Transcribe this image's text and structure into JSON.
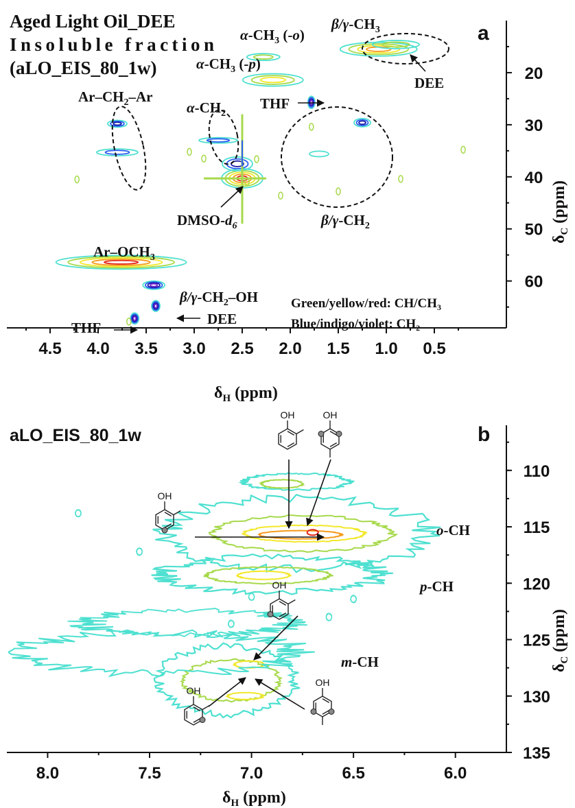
{
  "chart_data": [
    {
      "panel": "a",
      "type": "heatmap",
      "title_lines": [
        "Aged Light Oil_DEE",
        "Insoluble fraction",
        "(aLO_EIS_80_1w)"
      ],
      "xlabel": "δH (ppm)",
      "ylabel": "δC (ppm)",
      "xlim": [
        4.95,
        -0.25
      ],
      "ylim": [
        10,
        69
      ],
      "x_ticks": [
        4.5,
        4.0,
        3.5,
        3.0,
        2.5,
        2.0,
        1.5,
        1.0,
        0.5
      ],
      "x_tick_labels": [
        "4.5",
        "4.0",
        "3.5",
        "3.0",
        "2.5",
        "2.0",
        "1.5",
        "1.0",
        "0.5"
      ],
      "y_ticks": [
        20,
        30,
        40,
        50,
        60
      ],
      "y_tick_labels": [
        "20",
        "30",
        "40",
        "50",
        "60"
      ],
      "legend": [
        "Green/yellow/red:  CH/CH3",
        "Blue/indigo/violet: CH2"
      ],
      "cross_peaks": [
        {
          "x": 3.76,
          "y": 56.4,
          "levels": 5,
          "kind": "CH",
          "label": "Ar–OCH3"
        },
        {
          "x": 3.42,
          "y": 60.8,
          "levels": 4,
          "kind": "CH2"
        },
        {
          "x": 3.4,
          "y": 64.8,
          "levels": 4,
          "kind": "CH2"
        },
        {
          "x": 3.62,
          "y": 67.2,
          "levels": 4,
          "kind": "CH2"
        },
        {
          "x": 2.5,
          "y": 40.3,
          "levels": 5,
          "kind": "CH"
        },
        {
          "x": 2.55,
          "y": 37.5,
          "levels": 3,
          "kind": "CH2"
        },
        {
          "x": 2.18,
          "y": 21.4,
          "levels": 3,
          "kind": "CH"
        },
        {
          "x": 2.28,
          "y": 17.0,
          "levels": 2,
          "kind": "CH"
        },
        {
          "x": 1.78,
          "y": 25.7,
          "levels": 4,
          "kind": "CH2"
        },
        {
          "x": 1.25,
          "y": 29.6,
          "levels": 3,
          "kind": "CH2"
        },
        {
          "x": 1.08,
          "y": 15.5,
          "levels": 4,
          "kind": "CH"
        },
        {
          "x": 0.9,
          "y": 14.6,
          "levels": 2,
          "kind": "CH"
        },
        {
          "x": 3.8,
          "y": 29.8,
          "levels": 3,
          "kind": "CH2"
        },
        {
          "x": 3.8,
          "y": 35.3,
          "levels": 2,
          "kind": "CH2"
        },
        {
          "x": 2.75,
          "y": 33.0,
          "levels": 2,
          "kind": "CH2"
        },
        {
          "x": 1.7,
          "y": 35.6,
          "levels": 1,
          "kind": "CH2"
        }
      ],
      "annotations": [
        "α-CH3 (-o)",
        "α-CH3 (-p)",
        "β/γ-CH3",
        "DEE",
        "Ar–CH2–Ar",
        "α-CH2",
        "THF",
        "DMSO-d6",
        "β/γ-CH2",
        "β/γ-CH2–OH",
        "THF",
        "DEE"
      ]
    },
    {
      "panel": "b",
      "type": "heatmap",
      "title": "aLO_EIS_80_1w",
      "xlabel": "δH (ppm)",
      "ylabel": "δC (ppm)",
      "xlim": [
        8.2,
        5.75
      ],
      "ylim": [
        106,
        135
      ],
      "x_ticks": [
        8.0,
        7.5,
        7.0,
        6.5,
        6.0
      ],
      "x_tick_labels": [
        "8.0",
        "7.5",
        "7.0",
        "6.5",
        "6.0"
      ],
      "y_ticks": [
        110,
        115,
        120,
        125,
        130,
        135
      ],
      "y_tick_labels": [
        "110",
        "115",
        "120",
        "125",
        "130",
        "135"
      ],
      "regions": [
        {
          "label": "o-CH",
          "x": 6.78,
          "y": 115.7,
          "levels": 4
        },
        {
          "label": "p-CH",
          "x": 6.92,
          "y": 119.2,
          "levels": 3
        },
        {
          "label": "m-CH",
          "x": 7.02,
          "y": 128.5,
          "levels": 3
        }
      ],
      "annotations": [
        "o-CH",
        "p-CH",
        "m-CH",
        "OH",
        "OH",
        "OH",
        "OH",
        "OH",
        "OH"
      ]
    }
  ],
  "panel_letters": {
    "a": "a",
    "b": "b"
  },
  "colors": {
    "contour_outer": "#4ee0d0",
    "contour_green": "#a6d94a",
    "contour_yellow": "#f2e82a",
    "contour_orange": "#f59a1c",
    "contour_red": "#e42a1c",
    "contour_blue": "#2a5ff0",
    "contour_indigo": "#1a1aa8",
    "contour_violet": "#7a2ad0"
  }
}
